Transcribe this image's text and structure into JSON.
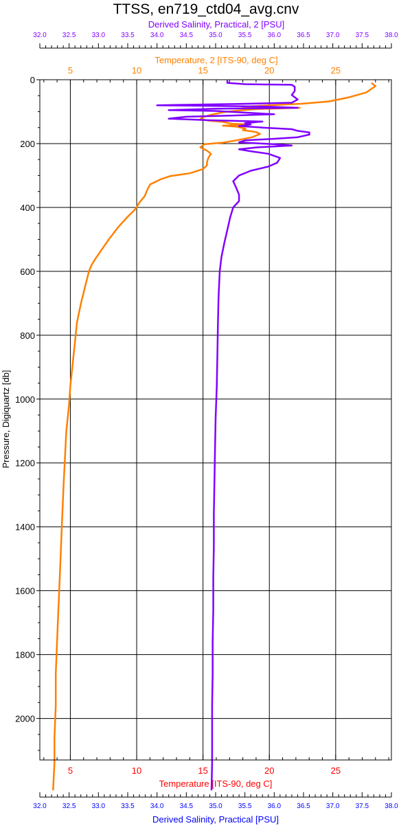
{
  "chart_data": {
    "type": "line",
    "title": "TTSS, en719_ctd04_avg.cnv",
    "ylabel": "Pressure, Digiquartz [db]",
    "ylim": [
      2130,
      0
    ],
    "y_ticks": [
      0,
      200,
      400,
      600,
      800,
      1000,
      1200,
      1400,
      1600,
      1800,
      2000
    ],
    "grid": true,
    "colors": {
      "temp2": "#FF8000",
      "sal2": "#8000FF",
      "bottom_temp_label": "#FF0000",
      "bottom_sal_label": "#0000FF",
      "grid": "#000000",
      "axis": "#000000"
    },
    "axes": {
      "top_salinity": {
        "label": "Derived Salinity, Practical, 2 [PSU]",
        "min": 32.0,
        "max": 38.0,
        "ticks": [
          "32.0",
          "32.5",
          "33.0",
          "33.5",
          "34.0",
          "34.5",
          "35.0",
          "35.5",
          "36.0",
          "36.5",
          "37.0",
          "37.5",
          "38.0"
        ]
      },
      "top_temperature": {
        "label": "Temperature, 2 [ITS-90, deg C]",
        "min": 2.7,
        "max": 29.2,
        "ticks": [
          "5",
          "10",
          "15",
          "20",
          "25"
        ]
      },
      "bottom_temperature": {
        "label": "Temperature [ITS-90, deg C]",
        "min": 2.7,
        "max": 29.2,
        "ticks": [
          "5",
          "10",
          "15",
          "20",
          "25"
        ]
      },
      "bottom_salinity": {
        "label": "Derived Salinity, Practical [PSU]",
        "min": 32.0,
        "max": 38.0,
        "ticks": [
          "32.0",
          "32.5",
          "33.0",
          "33.5",
          "34.0",
          "34.5",
          "35.0",
          "35.5",
          "36.0",
          "36.5",
          "37.0",
          "37.5",
          "38.0"
        ]
      }
    },
    "series": [
      {
        "name": "Temperature, 2 [ITS-90, deg C]",
        "axis": "temperature",
        "points": [
          [
            27.7,
            10
          ],
          [
            28.0,
            20
          ],
          [
            27.3,
            40
          ],
          [
            26.0,
            55
          ],
          [
            24.5,
            68
          ],
          [
            22.5,
            75
          ],
          [
            20.0,
            80
          ],
          [
            18.0,
            85
          ],
          [
            22.3,
            88
          ],
          [
            19.0,
            92
          ],
          [
            17.5,
            97
          ],
          [
            16.5,
            102
          ],
          [
            15.6,
            110
          ],
          [
            15.0,
            117
          ],
          [
            14.8,
            123
          ],
          [
            15.4,
            128
          ],
          [
            16.5,
            132
          ],
          [
            17.2,
            138
          ],
          [
            18.5,
            140
          ],
          [
            16.5,
            144
          ],
          [
            17.5,
            147
          ],
          [
            18.2,
            153
          ],
          [
            18.0,
            158
          ],
          [
            19.0,
            164
          ],
          [
            19.3,
            170
          ],
          [
            18.7,
            180
          ],
          [
            17.5,
            190
          ],
          [
            16.5,
            197
          ],
          [
            15.1,
            202
          ],
          [
            14.8,
            212
          ],
          [
            15.3,
            222
          ],
          [
            15.6,
            232
          ],
          [
            15.4,
            245
          ],
          [
            15.3,
            258
          ],
          [
            15.3,
            268
          ],
          [
            15.0,
            280
          ],
          [
            14.0,
            293
          ],
          [
            12.5,
            302
          ],
          [
            11.8,
            312
          ],
          [
            11.0,
            328
          ],
          [
            10.8,
            345
          ],
          [
            10.6,
            365
          ],
          [
            10.2,
            385
          ],
          [
            9.9,
            405
          ],
          [
            9.3,
            430
          ],
          [
            8.6,
            462
          ],
          [
            7.9,
            500
          ],
          [
            7.4,
            530
          ],
          [
            6.9,
            560
          ],
          [
            6.6,
            580
          ],
          [
            6.4,
            600
          ],
          [
            6.1,
            650
          ],
          [
            5.8,
            700
          ],
          [
            5.5,
            760
          ],
          [
            5.4,
            800
          ],
          [
            5.2,
            880
          ],
          [
            5.0,
            960
          ],
          [
            4.9,
            1020
          ],
          [
            4.7,
            1100
          ],
          [
            4.6,
            1180
          ],
          [
            4.5,
            1260
          ],
          [
            4.4,
            1360
          ],
          [
            4.3,
            1460
          ],
          [
            4.2,
            1560
          ],
          [
            4.1,
            1660
          ],
          [
            4.0,
            1760
          ],
          [
            3.9,
            1860
          ],
          [
            3.9,
            1960
          ],
          [
            3.8,
            2060
          ],
          [
            3.8,
            2140
          ],
          [
            3.7,
            2225
          ]
        ]
      },
      {
        "name": "Derived Salinity, Practical, 2 [PSU]",
        "axis": "salinity",
        "points": [
          [
            35.2,
            2
          ],
          [
            35.2,
            10
          ],
          [
            35.5,
            14
          ],
          [
            36.3,
            16
          ],
          [
            36.35,
            22
          ],
          [
            36.35,
            35
          ],
          [
            36.3,
            48
          ],
          [
            36.4,
            62
          ],
          [
            36.3,
            72
          ],
          [
            35.4,
            76
          ],
          [
            34.0,
            80
          ],
          [
            35.8,
            84
          ],
          [
            36.4,
            88
          ],
          [
            35.0,
            91
          ],
          [
            34.2,
            95
          ],
          [
            35.0,
            98
          ],
          [
            35.5,
            103
          ],
          [
            36.0,
            108
          ],
          [
            35.3,
            112
          ],
          [
            34.5,
            116
          ],
          [
            34.2,
            122
          ],
          [
            34.9,
            127
          ],
          [
            35.8,
            131
          ],
          [
            35.5,
            136
          ],
          [
            35.6,
            140
          ],
          [
            35.4,
            145
          ],
          [
            35.8,
            150
          ],
          [
            36.3,
            155
          ],
          [
            36.4,
            160
          ],
          [
            36.6,
            165
          ],
          [
            36.6,
            172
          ],
          [
            36.4,
            180
          ],
          [
            36.0,
            185
          ],
          [
            35.5,
            190
          ],
          [
            35.4,
            196
          ],
          [
            36.0,
            202
          ],
          [
            36.3,
            206
          ],
          [
            35.7,
            212
          ],
          [
            35.4,
            218
          ],
          [
            35.6,
            224
          ],
          [
            35.9,
            232
          ],
          [
            36.1,
            245
          ],
          [
            36.05,
            260
          ],
          [
            35.9,
            272
          ],
          [
            35.6,
            285
          ],
          [
            35.4,
            300
          ],
          [
            35.3,
            318
          ],
          [
            35.35,
            338
          ],
          [
            35.4,
            360
          ],
          [
            35.4,
            380
          ],
          [
            35.3,
            400
          ],
          [
            35.25,
            430
          ],
          [
            35.2,
            470
          ],
          [
            35.15,
            510
          ],
          [
            35.1,
            555
          ],
          [
            35.07,
            600
          ],
          [
            35.05,
            680
          ],
          [
            35.04,
            760
          ],
          [
            35.03,
            860
          ],
          [
            35.02,
            960
          ],
          [
            35.0,
            1060
          ],
          [
            34.99,
            1160
          ],
          [
            34.98,
            1260
          ],
          [
            34.97,
            1360
          ],
          [
            34.97,
            1460
          ],
          [
            34.96,
            1560
          ],
          [
            34.96,
            1660
          ],
          [
            34.95,
            1760
          ],
          [
            34.95,
            1860
          ],
          [
            34.94,
            1960
          ],
          [
            34.94,
            2060
          ],
          [
            34.94,
            2140
          ],
          [
            34.93,
            2225
          ]
        ]
      }
    ]
  }
}
